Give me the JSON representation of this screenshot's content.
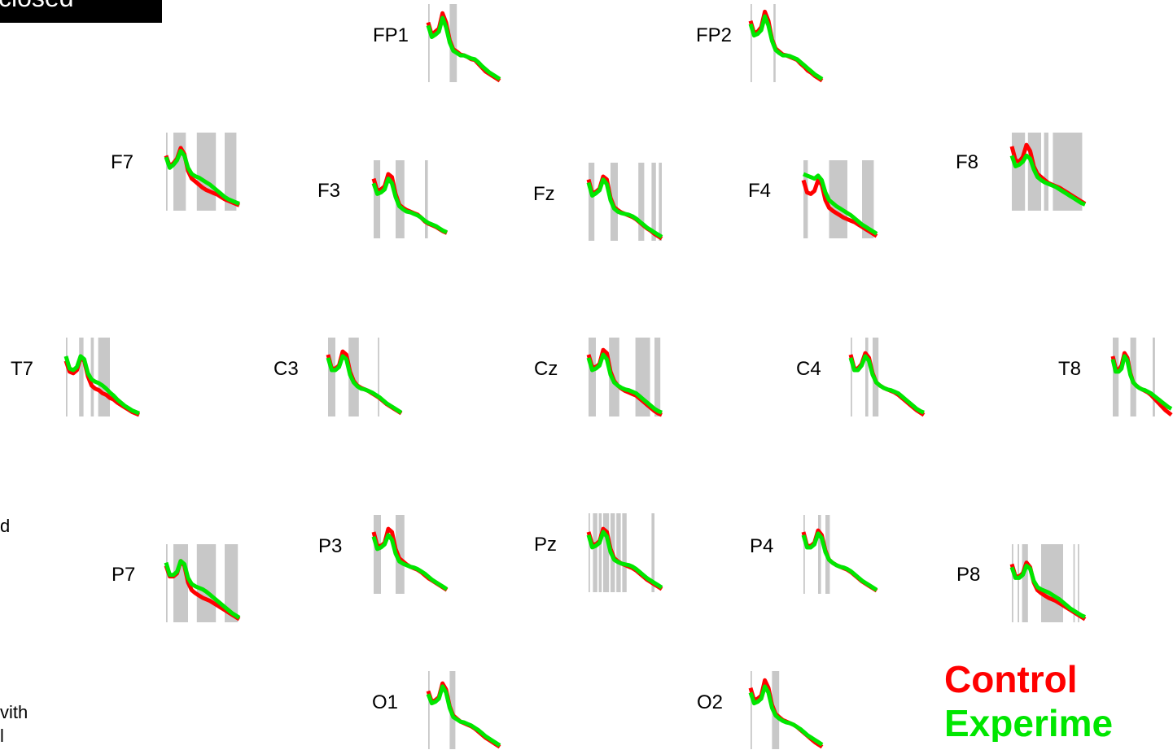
{
  "title": "closed",
  "side_text": [
    "d",
    "vith",
    "l"
  ],
  "chart_data": {
    "type": "line",
    "layout": "electrode-topography",
    "title": "",
    "xlabel": "",
    "ylabel": "",
    "grid": false,
    "legend_placement": "bottom-right",
    "series": [
      {
        "name": "Control",
        "color": "#ff0000"
      },
      {
        "name": "Experime",
        "color": "#00e600"
      }
    ],
    "significance_color": "#c8c8c8",
    "x": [
      0,
      0.05,
      0.1,
      0.15,
      0.2,
      0.25,
      0.3,
      0.35,
      0.4,
      0.45,
      0.5,
      0.55,
      0.6,
      0.65,
      0.7,
      0.75,
      0.8,
      0.85,
      0.9,
      0.95,
      1
    ],
    "electrodes": [
      {
        "name": "FP1",
        "control": [
          0.78,
          0.62,
          0.66,
          0.7,
          0.9,
          0.78,
          0.55,
          0.43,
          0.4,
          0.36,
          0.35,
          0.33,
          0.3,
          0.29,
          0.24,
          0.19,
          0.14,
          0.11,
          0.08,
          0.05,
          0.02
        ],
        "experimental": [
          0.74,
          0.59,
          0.62,
          0.66,
          0.84,
          0.72,
          0.52,
          0.41,
          0.38,
          0.35,
          0.35,
          0.33,
          0.31,
          0.3,
          0.26,
          0.21,
          0.17,
          0.13,
          0.1,
          0.07,
          0.04
        ],
        "sig_bands": [
          [
            0.0,
            0.02
          ],
          [
            0.3,
            0.4
          ]
        ]
      },
      {
        "name": "FP2",
        "control": [
          0.8,
          0.64,
          0.66,
          0.72,
          0.92,
          0.8,
          0.56,
          0.44,
          0.4,
          0.36,
          0.35,
          0.33,
          0.31,
          0.29,
          0.24,
          0.2,
          0.15,
          0.12,
          0.08,
          0.05,
          0.02
        ],
        "experimental": [
          0.76,
          0.61,
          0.63,
          0.68,
          0.86,
          0.74,
          0.54,
          0.42,
          0.38,
          0.35,
          0.35,
          0.34,
          0.32,
          0.3,
          0.26,
          0.22,
          0.18,
          0.14,
          0.1,
          0.07,
          0.04
        ],
        "sig_bands": [
          [
            0.0,
            0.02
          ],
          [
            0.32,
            0.35
          ]
        ]
      },
      {
        "name": "F7",
        "control": [
          0.72,
          0.58,
          0.62,
          0.68,
          0.82,
          0.74,
          0.52,
          0.42,
          0.38,
          0.34,
          0.3,
          0.27,
          0.25,
          0.23,
          0.21,
          0.18,
          0.15,
          0.13,
          0.11,
          0.09,
          0.07
        ],
        "experimental": [
          0.7,
          0.56,
          0.6,
          0.66,
          0.78,
          0.72,
          0.56,
          0.48,
          0.45,
          0.43,
          0.4,
          0.37,
          0.34,
          0.3,
          0.26,
          0.22,
          0.18,
          0.15,
          0.13,
          0.11,
          0.09
        ],
        "sig_bands": [
          [
            0.0,
            0.02
          ],
          [
            0.1,
            0.27
          ],
          [
            0.42,
            0.68
          ],
          [
            0.8,
            0.96
          ]
        ]
      },
      {
        "name": "F3",
        "control": [
          0.78,
          0.62,
          0.64,
          0.68,
          0.84,
          0.8,
          0.58,
          0.44,
          0.4,
          0.37,
          0.35,
          0.33,
          0.31,
          0.27,
          0.22,
          0.19,
          0.17,
          0.15,
          0.12,
          0.09,
          0.07
        ],
        "experimental": [
          0.72,
          0.58,
          0.6,
          0.64,
          0.78,
          0.72,
          0.54,
          0.42,
          0.38,
          0.35,
          0.34,
          0.32,
          0.3,
          0.27,
          0.23,
          0.2,
          0.18,
          0.16,
          0.13,
          0.1,
          0.08
        ],
        "sig_bands": [
          [
            0.0,
            0.09
          ],
          [
            0.3,
            0.42
          ],
          [
            0.7,
            0.74
          ]
        ]
      },
      {
        "name": "Fz",
        "control": [
          0.8,
          0.62,
          0.64,
          0.68,
          0.84,
          0.8,
          0.56,
          0.44,
          0.4,
          0.37,
          0.35,
          0.33,
          0.31,
          0.28,
          0.24,
          0.2,
          0.16,
          0.13,
          0.09,
          0.06,
          0.03
        ],
        "experimental": [
          0.76,
          0.59,
          0.62,
          0.66,
          0.8,
          0.74,
          0.53,
          0.42,
          0.38,
          0.36,
          0.35,
          0.34,
          0.32,
          0.29,
          0.25,
          0.21,
          0.17,
          0.14,
          0.11,
          0.08,
          0.05
        ],
        "sig_bands": [
          [
            0.0,
            0.08
          ],
          [
            0.3,
            0.4
          ],
          [
            0.68,
            0.76
          ],
          [
            0.86,
            0.92
          ],
          [
            0.96,
            1.0
          ]
        ]
      },
      {
        "name": "F4",
        "control": [
          0.76,
          0.6,
          0.58,
          0.62,
          0.76,
          0.7,
          0.5,
          0.4,
          0.36,
          0.33,
          0.3,
          0.27,
          0.25,
          0.23,
          0.21,
          0.18,
          0.15,
          0.12,
          0.09,
          0.06,
          0.03
        ],
        "experimental": [
          0.84,
          0.82,
          0.8,
          0.78,
          0.82,
          0.76,
          0.6,
          0.5,
          0.46,
          0.42,
          0.39,
          0.36,
          0.33,
          0.3,
          0.26,
          0.22,
          0.18,
          0.15,
          0.12,
          0.09,
          0.06
        ],
        "sig_bands": [
          [
            0.0,
            0.06
          ],
          [
            0.35,
            0.6
          ],
          [
            0.8,
            0.96
          ]
        ]
      },
      {
        "name": "F8",
        "control": [
          0.84,
          0.66,
          0.64,
          0.7,
          0.86,
          0.78,
          0.58,
          0.48,
          0.44,
          0.4,
          0.36,
          0.34,
          0.32,
          0.3,
          0.27,
          0.24,
          0.21,
          0.18,
          0.15,
          0.12,
          0.09
        ],
        "experimental": [
          0.72,
          0.58,
          0.6,
          0.64,
          0.72,
          0.68,
          0.54,
          0.44,
          0.4,
          0.37,
          0.35,
          0.33,
          0.31,
          0.28,
          0.25,
          0.22,
          0.19,
          0.16,
          0.13,
          0.1,
          0.08
        ],
        "sig_bands": [
          [
            0.0,
            0.18
          ],
          [
            0.22,
            0.4
          ],
          [
            0.44,
            0.5
          ],
          [
            0.56,
            0.96
          ]
        ]
      },
      {
        "name": "T7",
        "control": [
          0.72,
          0.58,
          0.56,
          0.6,
          0.76,
          0.72,
          0.52,
          0.4,
          0.36,
          0.34,
          0.3,
          0.28,
          0.24,
          0.22,
          0.18,
          0.15,
          0.12,
          0.09,
          0.06,
          0.04,
          0.02
        ],
        "experimental": [
          0.78,
          0.62,
          0.6,
          0.64,
          0.78,
          0.74,
          0.56,
          0.48,
          0.45,
          0.43,
          0.4,
          0.36,
          0.31,
          0.27,
          0.22,
          0.18,
          0.14,
          0.11,
          0.08,
          0.06,
          0.04
        ],
        "sig_bands": [
          [
            0.0,
            0.02
          ],
          [
            0.18,
            0.24
          ],
          [
            0.34,
            0.38
          ],
          [
            0.44,
            0.6
          ]
        ]
      },
      {
        "name": "C3",
        "control": [
          0.8,
          0.62,
          0.62,
          0.66,
          0.84,
          0.8,
          0.58,
          0.46,
          0.4,
          0.37,
          0.35,
          0.33,
          0.3,
          0.27,
          0.24,
          0.2,
          0.16,
          0.13,
          0.1,
          0.07,
          0.04
        ],
        "experimental": [
          0.76,
          0.6,
          0.6,
          0.64,
          0.78,
          0.74,
          0.54,
          0.44,
          0.39,
          0.36,
          0.35,
          0.33,
          0.31,
          0.28,
          0.25,
          0.21,
          0.17,
          0.14,
          0.11,
          0.08,
          0.05
        ],
        "sig_bands": [
          [
            0.0,
            0.1
          ],
          [
            0.28,
            0.42
          ],
          [
            0.68,
            0.7
          ]
        ]
      },
      {
        "name": "Cz",
        "control": [
          0.8,
          0.64,
          0.64,
          0.68,
          0.86,
          0.82,
          0.58,
          0.46,
          0.4,
          0.36,
          0.33,
          0.31,
          0.29,
          0.27,
          0.23,
          0.19,
          0.15,
          0.11,
          0.07,
          0.04,
          0.02
        ],
        "experimental": [
          0.76,
          0.6,
          0.62,
          0.66,
          0.8,
          0.74,
          0.54,
          0.44,
          0.4,
          0.37,
          0.35,
          0.34,
          0.32,
          0.3,
          0.26,
          0.22,
          0.18,
          0.14,
          0.1,
          0.07,
          0.05
        ],
        "sig_bands": [
          [
            0.0,
            0.1
          ],
          [
            0.28,
            0.42
          ],
          [
            0.64,
            0.84
          ],
          [
            0.9,
            0.98
          ]
        ]
      },
      {
        "name": "C4",
        "control": [
          0.8,
          0.62,
          0.62,
          0.68,
          0.82,
          0.76,
          0.56,
          0.44,
          0.4,
          0.37,
          0.35,
          0.33,
          0.31,
          0.28,
          0.24,
          0.2,
          0.16,
          0.12,
          0.08,
          0.05,
          0.02
        ],
        "experimental": [
          0.76,
          0.6,
          0.6,
          0.66,
          0.78,
          0.72,
          0.54,
          0.44,
          0.4,
          0.37,
          0.35,
          0.34,
          0.32,
          0.3,
          0.26,
          0.22,
          0.18,
          0.14,
          0.1,
          0.07,
          0.05
        ],
        "sig_bands": [
          [
            0.0,
            0.02
          ],
          [
            0.2,
            0.24
          ],
          [
            0.3,
            0.38
          ]
        ]
      },
      {
        "name": "T8",
        "control": [
          0.78,
          0.62,
          0.6,
          0.66,
          0.82,
          0.76,
          0.56,
          0.44,
          0.4,
          0.37,
          0.35,
          0.33,
          0.31,
          0.28,
          0.24,
          0.2,
          0.16,
          0.12,
          0.08,
          0.05,
          0.02
        ],
        "experimental": [
          0.74,
          0.58,
          0.58,
          0.62,
          0.78,
          0.72,
          0.54,
          0.44,
          0.4,
          0.37,
          0.35,
          0.34,
          0.32,
          0.3,
          0.27,
          0.24,
          0.21,
          0.18,
          0.15,
          0.12,
          0.1
        ],
        "sig_bands": [
          [
            0.0,
            0.1
          ],
          [
            0.3,
            0.4
          ],
          [
            0.68,
            0.72
          ]
        ]
      },
      {
        "name": "P7",
        "control": [
          0.74,
          0.6,
          0.6,
          0.64,
          0.8,
          0.74,
          0.52,
          0.42,
          0.38,
          0.35,
          0.32,
          0.3,
          0.28,
          0.25,
          0.22,
          0.19,
          0.16,
          0.13,
          0.1,
          0.07,
          0.04
        ],
        "experimental": [
          0.78,
          0.62,
          0.62,
          0.66,
          0.8,
          0.76,
          0.58,
          0.5,
          0.47,
          0.45,
          0.43,
          0.4,
          0.36,
          0.32,
          0.28,
          0.24,
          0.2,
          0.16,
          0.12,
          0.09,
          0.06
        ],
        "sig_bands": [
          [
            0.0,
            0.02
          ],
          [
            0.1,
            0.3
          ],
          [
            0.42,
            0.68
          ],
          [
            0.8,
            0.98
          ]
        ]
      },
      {
        "name": "P3",
        "control": [
          0.8,
          0.62,
          0.62,
          0.66,
          0.84,
          0.8,
          0.58,
          0.46,
          0.42,
          0.38,
          0.35,
          0.33,
          0.31,
          0.28,
          0.24,
          0.2,
          0.17,
          0.14,
          0.11,
          0.08,
          0.05
        ],
        "experimental": [
          0.74,
          0.58,
          0.6,
          0.64,
          0.76,
          0.7,
          0.52,
          0.42,
          0.39,
          0.37,
          0.35,
          0.34,
          0.32,
          0.29,
          0.26,
          0.22,
          0.18,
          0.15,
          0.12,
          0.09,
          0.06
        ],
        "sig_bands": [
          [
            0.0,
            0.1
          ],
          [
            0.3,
            0.42
          ]
        ]
      },
      {
        "name": "Pz",
        "control": [
          0.78,
          0.62,
          0.62,
          0.66,
          0.82,
          0.78,
          0.56,
          0.44,
          0.4,
          0.37,
          0.35,
          0.33,
          0.31,
          0.28,
          0.24,
          0.2,
          0.16,
          0.13,
          0.1,
          0.07,
          0.04
        ],
        "experimental": [
          0.74,
          0.58,
          0.6,
          0.64,
          0.78,
          0.72,
          0.52,
          0.42,
          0.39,
          0.37,
          0.36,
          0.35,
          0.33,
          0.3,
          0.26,
          0.22,
          0.18,
          0.15,
          0.12,
          0.09,
          0.06
        ],
        "sig_bands": [
          [
            0.0,
            0.02
          ],
          [
            0.06,
            0.12
          ],
          [
            0.14,
            0.18
          ],
          [
            0.2,
            0.28
          ],
          [
            0.3,
            0.36
          ],
          [
            0.38,
            0.44
          ],
          [
            0.46,
            0.52
          ],
          [
            0.86,
            0.9
          ]
        ]
      },
      {
        "name": "P4",
        "control": [
          0.8,
          0.62,
          0.62,
          0.66,
          0.82,
          0.76,
          0.56,
          0.44,
          0.4,
          0.37,
          0.35,
          0.33,
          0.31,
          0.28,
          0.24,
          0.2,
          0.16,
          0.13,
          0.1,
          0.07,
          0.04
        ],
        "experimental": [
          0.76,
          0.6,
          0.6,
          0.64,
          0.78,
          0.72,
          0.54,
          0.44,
          0.4,
          0.37,
          0.35,
          0.34,
          0.32,
          0.29,
          0.25,
          0.21,
          0.17,
          0.14,
          0.11,
          0.08,
          0.05
        ],
        "sig_bands": [
          [
            0.0,
            0.02
          ],
          [
            0.2,
            0.24
          ],
          [
            0.3,
            0.36
          ]
        ]
      },
      {
        "name": "P8",
        "control": [
          0.76,
          0.6,
          0.6,
          0.64,
          0.78,
          0.72,
          0.52,
          0.42,
          0.38,
          0.35,
          0.32,
          0.3,
          0.28,
          0.25,
          0.22,
          0.19,
          0.16,
          0.13,
          0.1,
          0.07,
          0.04
        ],
        "experimental": [
          0.72,
          0.58,
          0.58,
          0.62,
          0.74,
          0.7,
          0.54,
          0.46,
          0.43,
          0.41,
          0.39,
          0.36,
          0.33,
          0.3,
          0.26,
          0.22,
          0.18,
          0.15,
          0.12,
          0.09,
          0.07
        ],
        "sig_bands": [
          [
            0.0,
            0.02
          ],
          [
            0.08,
            0.1
          ],
          [
            0.14,
            0.22
          ],
          [
            0.4,
            0.7
          ],
          [
            0.84,
            0.86
          ],
          [
            0.9,
            0.92
          ]
        ]
      },
      {
        "name": "O1",
        "control": [
          0.76,
          0.62,
          0.64,
          0.68,
          0.86,
          0.78,
          0.56,
          0.44,
          0.4,
          0.36,
          0.34,
          0.32,
          0.3,
          0.27,
          0.23,
          0.19,
          0.15,
          0.12,
          0.09,
          0.06,
          0.03
        ],
        "experimental": [
          0.72,
          0.6,
          0.62,
          0.66,
          0.82,
          0.74,
          0.54,
          0.42,
          0.39,
          0.36,
          0.35,
          0.33,
          0.31,
          0.28,
          0.25,
          0.21,
          0.17,
          0.14,
          0.11,
          0.08,
          0.05
        ],
        "sig_bands": [
          [
            0.0,
            0.02
          ],
          [
            0.3,
            0.38
          ]
        ]
      },
      {
        "name": "O2",
        "control": [
          0.8,
          0.64,
          0.66,
          0.7,
          0.9,
          0.8,
          0.58,
          0.46,
          0.42,
          0.38,
          0.36,
          0.34,
          0.32,
          0.29,
          0.25,
          0.21,
          0.17,
          0.13,
          0.09,
          0.06,
          0.03
        ],
        "experimental": [
          0.74,
          0.6,
          0.62,
          0.66,
          0.82,
          0.74,
          0.54,
          0.44,
          0.4,
          0.37,
          0.35,
          0.34,
          0.32,
          0.29,
          0.26,
          0.22,
          0.18,
          0.15,
          0.12,
          0.09,
          0.06
        ],
        "sig_bands": [
          [
            0.0,
            0.02
          ],
          [
            0.3,
            0.4
          ]
        ]
      }
    ]
  }
}
